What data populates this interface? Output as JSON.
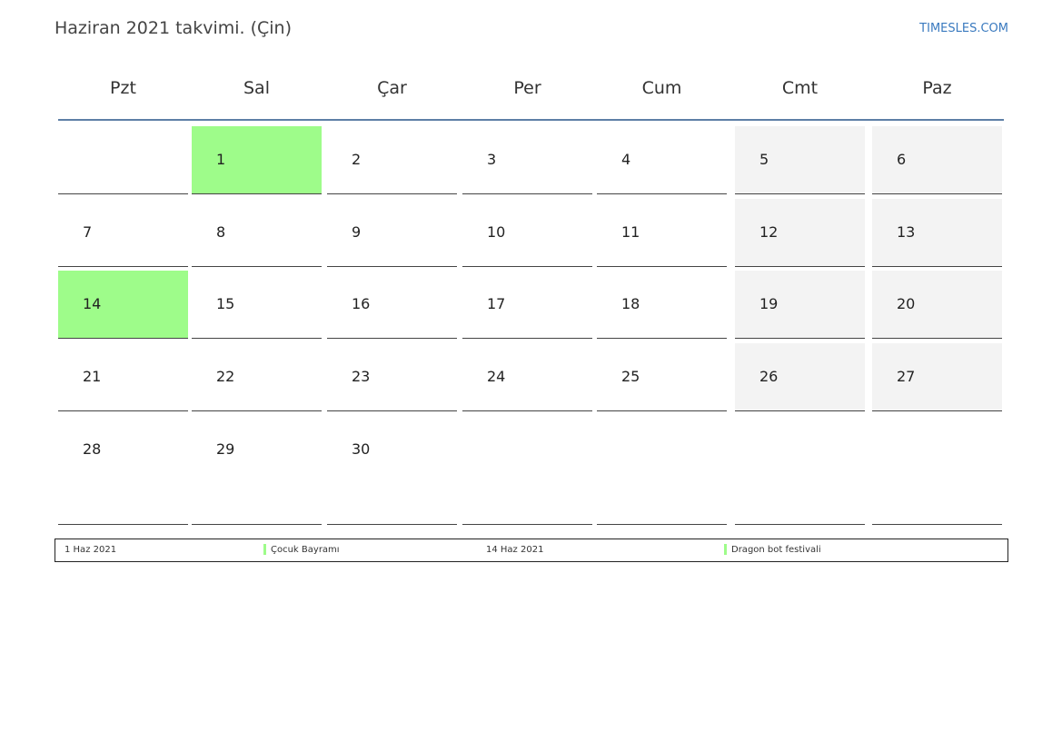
{
  "header": {
    "title": "Haziran 2021 takvimi. (Çin)",
    "site": "TIMESLES.COM"
  },
  "weekdays": [
    "Pzt",
    "Sal",
    "Çar",
    "Per",
    "Cum",
    "Cmt",
    "Paz"
  ],
  "weeks": [
    [
      null,
      {
        "day": 1,
        "fill": "#9efc8a"
      },
      {
        "day": 2,
        "fill": "#ffffff"
      },
      {
        "day": 3,
        "fill": "#ffffff"
      },
      {
        "day": 4,
        "fill": "#ffffff"
      },
      {
        "day": 5,
        "fill": "#f3f3f3"
      },
      {
        "day": 6,
        "fill": "#f3f3f3"
      }
    ],
    [
      {
        "day": 7,
        "fill": "#ffffff"
      },
      {
        "day": 8,
        "fill": "#ffffff"
      },
      {
        "day": 9,
        "fill": "#ffffff"
      },
      {
        "day": 10,
        "fill": "#ffffff"
      },
      {
        "day": 11,
        "fill": "#ffffff"
      },
      {
        "day": 12,
        "fill": "#f3f3f3"
      },
      {
        "day": 13,
        "fill": "#f3f3f3"
      }
    ],
    [
      {
        "day": 14,
        "fill": "#9efc8a"
      },
      {
        "day": 15,
        "fill": "#ffffff"
      },
      {
        "day": 16,
        "fill": "#ffffff"
      },
      {
        "day": 17,
        "fill": "#ffffff"
      },
      {
        "day": 18,
        "fill": "#ffffff"
      },
      {
        "day": 19,
        "fill": "#f3f3f3"
      },
      {
        "day": 20,
        "fill": "#f3f3f3"
      }
    ],
    [
      {
        "day": 21,
        "fill": "#ffffff"
      },
      {
        "day": 22,
        "fill": "#ffffff"
      },
      {
        "day": 23,
        "fill": "#ffffff"
      },
      {
        "day": 24,
        "fill": "#ffffff"
      },
      {
        "day": 25,
        "fill": "#ffffff"
      },
      {
        "day": 26,
        "fill": "#f3f3f3"
      },
      {
        "day": 27,
        "fill": "#f3f3f3"
      }
    ],
    [
      {
        "day": 28,
        "fill": "#ffffff"
      },
      {
        "day": 29,
        "fill": "#ffffff"
      },
      {
        "day": 30,
        "fill": "#ffffff"
      },
      null,
      null,
      null,
      null
    ]
  ],
  "holidays": [
    {
      "date": "1 Haz 2021",
      "name": "Çocuk Bayramı",
      "color": "#9efc8a"
    },
    {
      "date": "14 Haz 2021",
      "name": "Dragon bot festivali",
      "color": "#9efc8a"
    }
  ]
}
